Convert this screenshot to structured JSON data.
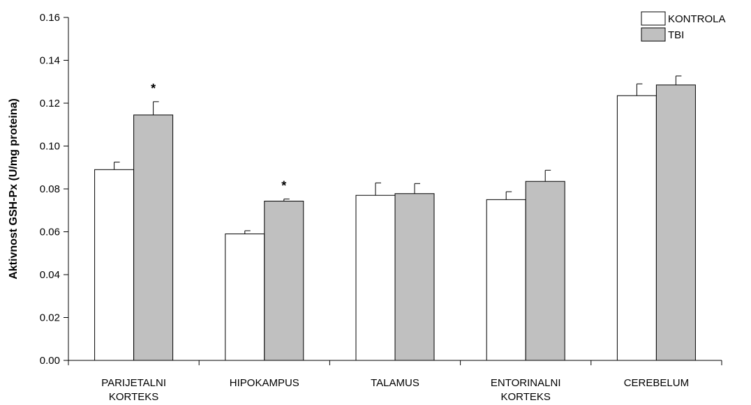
{
  "chart_data": {
    "type": "bar",
    "ylabel": "Aktivnost GSH-Px (U/mg proteina)",
    "xlabel": "",
    "ylim": [
      0,
      0.16
    ],
    "yticks": [
      "0.00",
      "0.02",
      "0.04",
      "0.06",
      "0.08",
      "0.10",
      "0.12",
      "0.14",
      "0.16"
    ],
    "categories": [
      [
        "PARIJETALNI",
        "KORTEKS"
      ],
      [
        "HIPOKAMPUS"
      ],
      [
        "TALAMUS"
      ],
      [
        "ENTORINALNI",
        "KORTEKS"
      ],
      [
        "CEREBELUM"
      ]
    ],
    "series": [
      {
        "name": "KONTROLA",
        "color": "#ffffff",
        "values": [
          0.089,
          0.059,
          0.077,
          0.075,
          0.1235
        ],
        "errors": [
          0.0035,
          0.0015,
          0.0058,
          0.0037,
          0.0055
        ]
      },
      {
        "name": "TBI",
        "color": "#c0c0c0",
        "values": [
          0.1145,
          0.0743,
          0.0778,
          0.0835,
          0.1285
        ],
        "errors": [
          0.0062,
          0.001,
          0.0047,
          0.0052,
          0.0042
        ]
      }
    ],
    "significance": [
      {
        "category_index": 0,
        "series_index": 1,
        "label": "*"
      },
      {
        "category_index": 1,
        "series_index": 1,
        "label": "*"
      }
    ],
    "legend": "top-right",
    "grid": false
  }
}
